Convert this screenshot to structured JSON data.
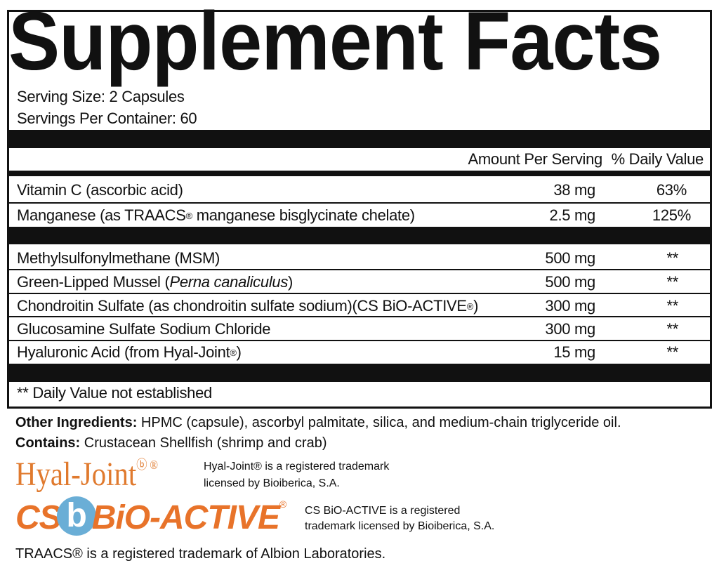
{
  "title": "Supplement Facts",
  "serving_size": "Serving Size: 2 Capsules",
  "servings_per_container": "Servings Per Container: 60",
  "header": {
    "amount": "Amount Per Serving",
    "dv": "% Daily Value"
  },
  "vitamins": [
    {
      "name": "Vitamin C (ascorbic acid)",
      "amount": "38 mg",
      "dv": "63%"
    },
    {
      "name_pre": "Manganese (as TRAACS",
      "reg": "®",
      "name_post": " manganese bisglycinate chelate)",
      "amount": "2.5 mg",
      "dv": "125%"
    }
  ],
  "others": [
    {
      "name": "Methylsulfonylmethane (MSM)",
      "amount": "500 mg",
      "dv": "**"
    },
    {
      "name_pre": "Green-Lipped Mussel (",
      "italic": "Perna canaliculus",
      "name_post": ")",
      "amount": "500 mg",
      "dv": "**"
    },
    {
      "name_pre": "Chondroitin Sulfate (as chondroitin sulfate sodium)(CS BiO-ACTIVE",
      "reg": "®",
      "name_post": ")",
      "amount": "300 mg",
      "dv": "**"
    },
    {
      "name": "Glucosamine Sulfate Sodium Chloride",
      "amount": "300 mg",
      "dv": "**"
    },
    {
      "name_pre": "Hyaluronic Acid (from Hyal-Joint",
      "reg": "®",
      "name_post": ")",
      "amount": "15 mg",
      "dv": "**"
    }
  ],
  "footnote": "** Daily Value not established",
  "other_ingredients": {
    "label": "Other Ingredients:",
    "text": " HPMC (capsule), ascorbyl palmitate, silica, and medium-chain triglyceride oil."
  },
  "contains": {
    "label": "Contains:",
    "text": " Crustacean Shellfish (shrimp and crab)"
  },
  "hyal_logo": "Hyal-Joint",
  "hyal_note": [
    "Hyal-Joint® is a registered trademark",
    "licensed by Bioiberica, S.A."
  ],
  "cs_logo": {
    "pre": "CS",
    "b": "b",
    "post": "BiO-ACTIVE"
  },
  "cs_note": [
    "CS BiO-ACTIVE is a registered",
    "trademark licensed by Bioiberica, S.A."
  ],
  "traacs_note": "TRAACS® is a registered trademark of Albion Laboratories.",
  "colors": {
    "logo_orange": "#e8732a",
    "logo_blue": "#6aaed6"
  }
}
